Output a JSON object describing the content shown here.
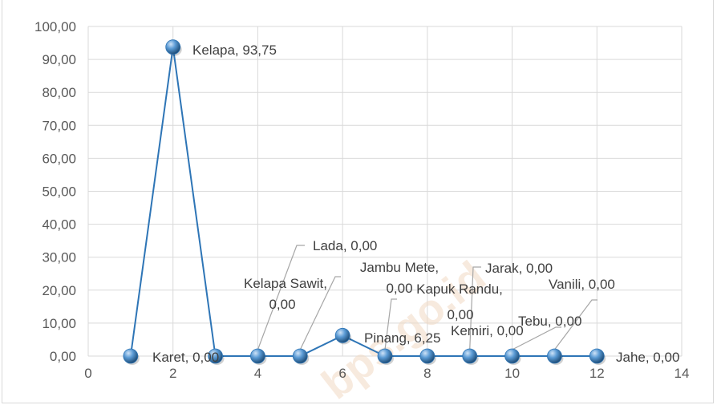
{
  "chart_data": {
    "type": "scatter",
    "title": "",
    "xlabel": "",
    "ylabel": "",
    "xlim": [
      0,
      14
    ],
    "ylim": [
      0,
      100
    ],
    "x_ticks": [
      "0",
      "2",
      "4",
      "6",
      "8",
      "10",
      "12",
      "14"
    ],
    "y_ticks": [
      "0,00",
      "10,00",
      "20,00",
      "30,00",
      "40,00",
      "50,00",
      "60,00",
      "70,00",
      "80,00",
      "90,00",
      "100,00"
    ],
    "grid": true,
    "legend": "none",
    "series_color": "#2e75b6",
    "points": [
      {
        "x": 1,
        "y": 0.0,
        "label": "Karet, 0,00"
      },
      {
        "x": 2,
        "y": 93.75,
        "label": "Kelapa, 93,75"
      },
      {
        "x": 3,
        "y": 0.0,
        "label": ""
      },
      {
        "x": 4,
        "y": 0.0,
        "label": "Lada, 0,00"
      },
      {
        "x": 5,
        "y": 0.0,
        "label": "Kelapa Sawit, 0,00"
      },
      {
        "x": 6,
        "y": 6.25,
        "label": "Pinang, 6,25"
      },
      {
        "x": 7,
        "y": 0.0,
        "label": "Jambu Mete, 0,00"
      },
      {
        "x": 8,
        "y": 0.0,
        "label": "Kapuk Randu, 0,00"
      },
      {
        "x": 9,
        "y": 0.0,
        "label": "Jarak, 0,00"
      },
      {
        "x": 10,
        "y": 0.0,
        "label": "Kemiri, 0,00"
      },
      {
        "x": 11,
        "y": 0.0,
        "label": "Tebu, 0,00"
      },
      {
        "x": 12,
        "y": 0.0,
        "label": "Jahe, 0,00"
      }
    ],
    "extra_labels": [
      {
        "x": 11,
        "text": "Vanili, 0,00"
      }
    ],
    "watermark": "bps.go.id"
  }
}
